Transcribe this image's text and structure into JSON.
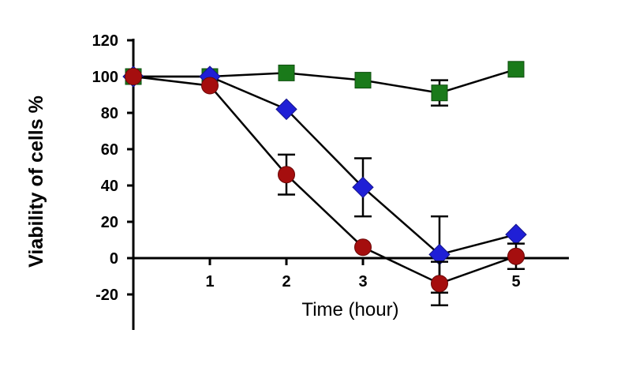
{
  "chart_data": {
    "type": "line",
    "xlabel": "Time (hour)",
    "ylabel": "Viability of cells %",
    "xlim": [
      0,
      5.5
    ],
    "ylim": [
      -40,
      120
    ],
    "x_ticks": [
      1,
      2,
      3,
      5
    ],
    "y_ticks": [
      120,
      100,
      80,
      60,
      40,
      20,
      0,
      -20
    ],
    "x_tick_labels": [
      "1",
      "2",
      "3",
      "5"
    ],
    "y_tick_labels": [
      "120",
      "100",
      "80",
      "60",
      "40",
      "20",
      "0",
      "-20"
    ],
    "grid": false,
    "series": [
      {
        "marker": "square",
        "color": "#1a7a1a",
        "x": [
          0,
          1,
          2,
          3,
          4,
          5
        ],
        "y": [
          100,
          100,
          102,
          98,
          91,
          104
        ],
        "error": [
          0,
          0,
          0,
          0,
          7,
          0
        ]
      },
      {
        "marker": "diamond",
        "color": "#1f1fd6",
        "x": [
          0,
          1,
          2,
          3,
          4,
          5
        ],
        "y": [
          100,
          100,
          82,
          39,
          2,
          13
        ],
        "error": [
          0,
          0,
          0,
          16,
          21,
          0
        ]
      },
      {
        "marker": "circle",
        "color": "#a50e0e",
        "x": [
          0,
          1,
          2,
          3,
          4,
          5
        ],
        "y": [
          100,
          95,
          46,
          6,
          -14,
          1
        ],
        "error": [
          0,
          0,
          11,
          0,
          12,
          7
        ]
      }
    ]
  }
}
